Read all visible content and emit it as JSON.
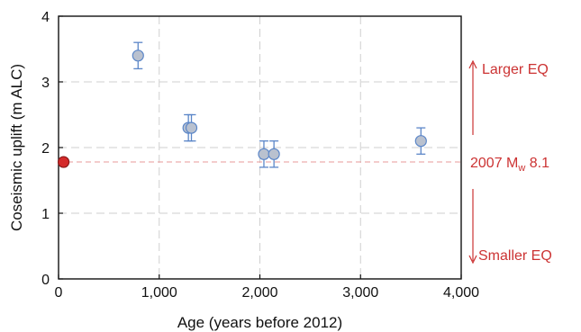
{
  "chart_data": {
    "type": "scatter",
    "xlabel": "Age (years before 2012)",
    "ylabel": "Coseismic uplift (m ALC)",
    "xlim": [
      0,
      4000
    ],
    "ylim": [
      0,
      4
    ],
    "xticks": [
      0,
      1000,
      2000,
      3000,
      4000
    ],
    "xtick_labels": [
      "0",
      "1,000",
      "2,000",
      "3,000",
      "4,000"
    ],
    "yticks": [
      0,
      1,
      2,
      3,
      4
    ],
    "ytick_labels": [
      "0",
      "1",
      "2",
      "3",
      "4"
    ],
    "grid": true,
    "series": [
      {
        "color": "#b9c1cf",
        "edge_color": "#5b86c8",
        "points": [
          {
            "x": 790,
            "y": 3.4,
            "yerr": 0.2
          },
          {
            "x": 1290,
            "y": 2.3,
            "yerr": 0.2
          },
          {
            "x": 1320,
            "y": 2.3,
            "yerr": 0.2
          },
          {
            "x": 2040,
            "y": 1.9,
            "yerr": 0.2
          },
          {
            "x": 2140,
            "y": 1.9,
            "yerr": 0.2
          },
          {
            "x": 3600,
            "y": 2.1,
            "yerr": 0.2
          }
        ]
      },
      {
        "color": "#d42a2a",
        "edge_color": "#8a1a1a",
        "points": [
          {
            "x": 50,
            "y": 1.78
          }
        ]
      }
    ],
    "reference_line": {
      "y": 1.78,
      "color": "#e89a9a"
    },
    "annotations": {
      "larger": "Larger EQ",
      "smaller": "Smaller EQ",
      "event_prefix": "2007 M",
      "event_sub": "w",
      "event_suffix": " 8.1",
      "color": "#cc3333"
    }
  }
}
